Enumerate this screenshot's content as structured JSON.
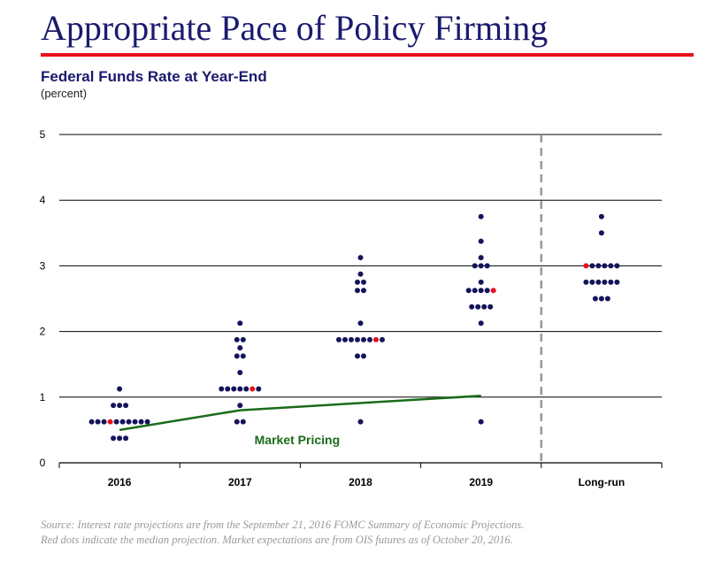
{
  "header": {
    "title": "Appropriate Pace of Policy Firming",
    "accent_color": "#e8101c",
    "title_color": "#1a1a6e"
  },
  "chart_data": {
    "type": "scatter",
    "title": "Federal Funds Rate at Year-End",
    "subtitle": "(percent)",
    "xlabel": "",
    "ylabel": "percent",
    "ylim": [
      0,
      5
    ],
    "yticks": [
      0,
      1,
      2,
      3,
      4,
      5
    ],
    "categories": [
      "2016",
      "2017",
      "2018",
      "2019",
      "Long-run"
    ],
    "grid": true,
    "dot_color": "#14145c",
    "median_color": "#e8101c",
    "dots": {
      "2016": [
        {
          "value": 1.125,
          "count": 1
        },
        {
          "value": 0.875,
          "count": 3
        },
        {
          "value": 0.625,
          "count": 10,
          "median_index": 3
        },
        {
          "value": 0.375,
          "count": 3
        }
      ],
      "2017": [
        {
          "value": 2.125,
          "count": 1
        },
        {
          "value": 1.875,
          "count": 2
        },
        {
          "value": 1.75,
          "count": 1
        },
        {
          "value": 1.625,
          "count": 2
        },
        {
          "value": 1.375,
          "count": 1
        },
        {
          "value": 1.125,
          "count": 7,
          "median_index": 5
        },
        {
          "value": 0.875,
          "count": 1
        },
        {
          "value": 0.625,
          "count": 2
        }
      ],
      "2018": [
        {
          "value": 3.125,
          "count": 1
        },
        {
          "value": 2.875,
          "count": 1
        },
        {
          "value": 2.75,
          "count": 2
        },
        {
          "value": 2.625,
          "count": 2
        },
        {
          "value": 2.125,
          "count": 1
        },
        {
          "value": 1.875,
          "count": 8,
          "median_index": 6
        },
        {
          "value": 1.625,
          "count": 2
        },
        {
          "value": 0.625,
          "count": 1
        }
      ],
      "2019": [
        {
          "value": 3.75,
          "count": 1
        },
        {
          "value": 3.375,
          "count": 1
        },
        {
          "value": 3.125,
          "count": 1
        },
        {
          "value": 3.0,
          "count": 3
        },
        {
          "value": 2.75,
          "count": 1
        },
        {
          "value": 2.625,
          "count": 5,
          "median_index": 4
        },
        {
          "value": 2.375,
          "count": 4
        },
        {
          "value": 2.125,
          "count": 1
        },
        {
          "value": 0.625,
          "count": 1
        }
      ],
      "Long-run": [
        {
          "value": 3.75,
          "count": 1
        },
        {
          "value": 3.5,
          "count": 1
        },
        {
          "value": 3.0,
          "count": 6,
          "median_index": 0
        },
        {
          "value": 2.75,
          "count": 6
        },
        {
          "value": 2.5,
          "count": 3
        }
      ]
    },
    "market_pricing": {
      "label": "Market Pricing",
      "color": "#1a6b1a",
      "points": [
        {
          "x": 0.0,
          "y": 0.5
        },
        {
          "x": 1.0,
          "y": 0.8
        },
        {
          "x": 3.0,
          "y": 1.02
        }
      ]
    },
    "longrun_separator": "dashed vertical line between 2019 and Long-run"
  },
  "source": {
    "line1": "Source: Interest rate projections are from the September 21, 2016 FOMC Summary of Economic Projections.",
    "line2": "Red dots indicate the median projection. Market expectations are from OIS futures as of October 20, 2016."
  }
}
